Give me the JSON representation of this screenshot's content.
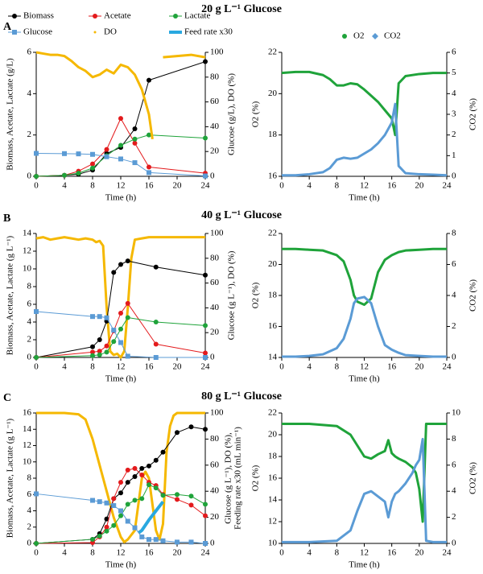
{
  "panels": [
    {
      "label": "A",
      "title": "20 g L⁻¹ Glucose"
    },
    {
      "label": "B",
      "title": "40 g L⁻¹ Glucose"
    },
    {
      "label": "C",
      "title": "80 g L⁻¹ Glucose"
    }
  ],
  "chart_data": [
    {
      "type": "line",
      "xlabel": "Time (h)",
      "ylabel": "Biomass, Acetate, Lactate (g/L)",
      "y2label": "Glucose (g/L), DO (%)",
      "xlim": [
        0,
        24
      ],
      "xticks": [
        0,
        4,
        8,
        12,
        16,
        20,
        24
      ],
      "ylim": [
        0,
        6
      ],
      "yticks": [
        0,
        2,
        4,
        6
      ],
      "y2lim": [
        0,
        100
      ],
      "y2ticks": [
        0,
        20,
        40,
        60,
        80,
        100
      ],
      "legend": [
        {
          "name": "Biomass",
          "color": "#000000",
          "marker": "circle"
        },
        {
          "name": "Acetate",
          "color": "#e31a1c",
          "marker": "circle"
        },
        {
          "name": "Lactate",
          "color": "#1fa33a",
          "marker": "circle"
        },
        {
          "name": "Glucose",
          "color": "#5b9bd5",
          "marker": "square"
        },
        {
          "name": "DO",
          "color": "#f5b800",
          "marker": "dot"
        },
        {
          "name": "Feed rate x30",
          "color": "#29a8e0",
          "marker": "bar"
        }
      ],
      "x": [
        0,
        4,
        6,
        8,
        10,
        12,
        14,
        16,
        24
      ],
      "series": [
        {
          "color": "#000000",
          "marker": "circle",
          "values": [
            0,
            0.05,
            0.1,
            0.3,
            1.1,
            1.4,
            2.3,
            4.65,
            5.55
          ]
        },
        {
          "color": "#e31a1c",
          "marker": "circle",
          "values": [
            0,
            0.05,
            0.25,
            0.6,
            1.3,
            2.8,
            1.6,
            0.45,
            0.15
          ]
        },
        {
          "color": "#1fa33a",
          "marker": "circle",
          "values": [
            0,
            0.05,
            0.15,
            0.4,
            1.0,
            1.5,
            1.8,
            2.0,
            1.85
          ]
        },
        {
          "color": "#5b9bd5",
          "marker": "square",
          "axis": "y2",
          "values": [
            18.5,
            18.3,
            18.1,
            17.7,
            15.8,
            14,
            11,
            3,
            0.3
          ]
        },
        {
          "color": "#f5b800",
          "marker": "none",
          "width": 3,
          "axis": "y2",
          "x": [
            0,
            1,
            2,
            3,
            4,
            5,
            6,
            7,
            8,
            9,
            10,
            11,
            12,
            13,
            14,
            15,
            16,
            16.5,
            17,
            18,
            20,
            22,
            24
          ],
          "values": [
            100,
            99,
            98,
            98,
            97,
            93,
            88,
            85,
            80,
            82,
            86,
            83,
            90,
            88,
            82,
            70,
            50,
            30,
            null,
            96,
            97,
            98,
            96
          ]
        }
      ]
    },
    {
      "type": "line",
      "xlabel": "Time (h)",
      "ylabel": "O2 (%)",
      "y2label": "CO2 (%)",
      "xlim": [
        0,
        24
      ],
      "xticks": [
        0,
        4,
        8,
        12,
        16,
        20,
        24
      ],
      "ylim": [
        16,
        22
      ],
      "yticks": [
        16,
        18,
        20,
        22
      ],
      "y2lim": [
        0,
        6
      ],
      "y2ticks": [
        0,
        1,
        2,
        3,
        4,
        5,
        6
      ],
      "legend": [
        {
          "name": "O2",
          "color": "#1fa33a",
          "marker": "circle"
        },
        {
          "name": "CO2",
          "color": "#5b9bd5",
          "marker": "diamond"
        }
      ],
      "x": [
        0,
        2,
        4,
        6,
        7,
        8,
        9,
        10,
        11,
        12,
        13,
        14,
        15,
        16,
        16.5,
        17,
        18,
        20,
        22,
        24
      ],
      "series": [
        {
          "color": "#1fa33a",
          "marker": "none",
          "width": 3,
          "values": [
            21,
            21.05,
            21.05,
            20.9,
            20.7,
            20.4,
            20.4,
            20.5,
            20.45,
            20.2,
            19.9,
            19.6,
            19.2,
            18.8,
            18,
            20.5,
            20.85,
            20.95,
            21,
            21
          ]
        },
        {
          "color": "#5b9bd5",
          "marker": "none",
          "width": 3,
          "axis": "y2",
          "values": [
            0.05,
            0.05,
            0.1,
            0.2,
            0.4,
            0.8,
            0.9,
            0.85,
            0.9,
            1.1,
            1.3,
            1.6,
            2.0,
            2.6,
            3.5,
            0.5,
            0.15,
            0.1,
            0.08,
            0.05
          ]
        }
      ]
    },
    {
      "type": "line",
      "xlabel": "Time (h)",
      "ylabel": "Biomass, Acetate, Lactate (g L⁻¹)",
      "y2label": "Glucose (g L⁻¹), DO (%)",
      "xlim": [
        0,
        24
      ],
      "xticks": [
        0,
        4,
        8,
        12,
        16,
        20,
        24
      ],
      "ylim": [
        0,
        14
      ],
      "yticks": [
        0,
        2,
        4,
        6,
        8,
        10,
        12,
        14
      ],
      "y2lim": [
        0,
        100
      ],
      "y2ticks": [
        0,
        20,
        40,
        60,
        80,
        100
      ],
      "x": [
        0,
        8,
        9,
        10,
        11,
        12,
        13,
        17,
        24
      ],
      "series": [
        {
          "color": "#f5b800",
          "marker": "none",
          "width": 3,
          "axis": "y2",
          "x": [
            0,
            1,
            2,
            3,
            4,
            5,
            6,
            7,
            8,
            8.5,
            9,
            9.5,
            10,
            10.5,
            11,
            11.5,
            12,
            12.5,
            13,
            13.5,
            14,
            15,
            16,
            17,
            18,
            20,
            22,
            24
          ],
          "values": [
            96,
            97,
            95,
            96,
            97,
            96,
            95,
            96,
            95,
            93,
            94,
            90,
            40,
            5,
            2,
            3,
            0,
            5,
            40,
            80,
            95,
            96,
            97,
            97,
            97,
            97,
            97,
            97
          ]
        },
        {
          "color": "#000000",
          "marker": "circle",
          "values": [
            0,
            1.2,
            2,
            4.1,
            9.6,
            10.5,
            10.9,
            10.2,
            9.3
          ]
        },
        {
          "color": "#e31a1c",
          "marker": "circle",
          "values": [
            0,
            0.6,
            0.7,
            1.3,
            3.0,
            5.0,
            6.1,
            1.5,
            0.5
          ]
        },
        {
          "color": "#1fa33a",
          "marker": "circle",
          "values": [
            0,
            0.2,
            0.3,
            0.6,
            1.8,
            3.2,
            4.5,
            4,
            3.6
          ]
        },
        {
          "color": "#5b9bd5",
          "marker": "square",
          "axis": "y2",
          "values": [
            37,
            33,
            33,
            32,
            22,
            12,
            1,
            0,
            0
          ]
        }
      ]
    },
    {
      "type": "line",
      "xlabel": "Time (h)",
      "ylabel": "O2 (%)",
      "y2label": "CO2 (%)",
      "xlim": [
        0,
        24
      ],
      "xticks": [
        0,
        4,
        8,
        12,
        16,
        20,
        24
      ],
      "ylim": [
        14,
        22
      ],
      "yticks": [
        14,
        16,
        18,
        20,
        22
      ],
      "y2lim": [
        0,
        8
      ],
      "y2ticks": [
        0,
        2,
        4,
        6,
        8
      ],
      "x": [
        0,
        2,
        4,
        6,
        8,
        9,
        10,
        10.5,
        11,
        12,
        13,
        14,
        15,
        16,
        17,
        18,
        20,
        22,
        24
      ],
      "series": [
        {
          "color": "#1fa33a",
          "marker": "none",
          "width": 3,
          "values": [
            21,
            21,
            20.95,
            20.9,
            20.6,
            20.2,
            19,
            18,
            17.6,
            17.4,
            17.8,
            19.5,
            20.3,
            20.6,
            20.8,
            20.9,
            20.95,
            21,
            21
          ]
        },
        {
          "color": "#5b9bd5",
          "marker": "none",
          "width": 3,
          "axis": "y2",
          "values": [
            0.05,
            0.05,
            0.1,
            0.2,
            0.6,
            1.2,
            2.5,
            3.5,
            3.8,
            3.9,
            3.5,
            2.0,
            0.8,
            0.5,
            0.3,
            0.15,
            0.1,
            0.05,
            0.05
          ]
        }
      ]
    },
    {
      "type": "line",
      "xlabel": "Time (h)",
      "ylabel": "Biomass, Acetate, Lactate (g L⁻¹)",
      "y2label": [
        "Glucose (g L⁻¹), DO (%),",
        "Feeding rate x30 (mL min⁻¹)"
      ],
      "xlim": [
        0,
        24
      ],
      "xticks": [
        0,
        4,
        8,
        12,
        16,
        20,
        24
      ],
      "ylim": [
        0,
        16
      ],
      "yticks": [
        0,
        2,
        4,
        6,
        8,
        10,
        12,
        14,
        16
      ],
      "y2lim": [
        0,
        100
      ],
      "y2ticks": [
        0,
        20,
        40,
        60,
        80,
        100
      ],
      "x": [
        0,
        8,
        9,
        10,
        11,
        12,
        13,
        14,
        15,
        16,
        17,
        18,
        20,
        22,
        24
      ],
      "series": [
        {
          "color": "#f5b800",
          "marker": "none",
          "width": 3,
          "axis": "y2",
          "x": [
            0,
            2,
            4,
            6,
            7,
            8,
            9,
            10,
            11,
            12,
            12.5,
            13,
            14,
            14.5,
            15,
            15.5,
            16,
            16.5,
            17,
            17.5,
            18,
            18.5,
            19,
            19.5,
            20,
            21,
            22,
            24
          ],
          "values": [
            100,
            100,
            100,
            99,
            95,
            80,
            60,
            40,
            20,
            5,
            1,
            3,
            10,
            30,
            50,
            55,
            50,
            30,
            10,
            3,
            15,
            70,
            90,
            98,
            100,
            100,
            100,
            100
          ]
        },
        {
          "color": "#29a8e0",
          "marker": "none",
          "width": 4,
          "axis": "y2",
          "x": [
            14.5,
            15,
            16,
            17,
            18
          ],
          "values": [
            8,
            10,
            18,
            25,
            32
          ]
        },
        {
          "color": "#000000",
          "marker": "circle",
          "values": [
            0,
            0.5,
            1.2,
            3,
            5.5,
            6.2,
            7.5,
            8.2,
            9.2,
            9.5,
            10.2,
            11.2,
            13.6,
            14.3,
            14
          ]
        },
        {
          "color": "#e31a1c",
          "marker": "circle",
          "values": [
            0,
            0.1,
            0.8,
            2,
            5.5,
            7.5,
            9,
            9.2,
            8.4,
            7.5,
            7.1,
            6,
            5.4,
            4.7,
            3.4
          ]
        },
        {
          "color": "#1fa33a",
          "marker": "circle",
          "values": [
            0,
            0.5,
            0.9,
            1.5,
            2.2,
            3.4,
            4.8,
            5.3,
            5.5,
            7.2,
            6.8,
            5.9,
            6,
            5.8,
            4.8
          ]
        },
        {
          "color": "#5b9bd5",
          "marker": "square",
          "axis": "y2",
          "values": [
            38,
            33,
            32,
            31,
            29,
            25,
            17,
            12,
            5,
            3,
            3,
            2,
            1,
            1,
            0
          ]
        }
      ]
    },
    {
      "type": "line",
      "xlabel": "Time (h)",
      "ylabel": "O2 (%)",
      "y2label": "CO2 (%)",
      "xlim": [
        0,
        24
      ],
      "xticks": [
        0,
        4,
        8,
        12,
        16,
        20,
        24
      ],
      "ylim": [
        10,
        22
      ],
      "yticks": [
        10,
        12,
        14,
        16,
        18,
        20,
        22
      ],
      "y2lim": [
        0,
        10
      ],
      "y2ticks": [
        0,
        2,
        4,
        6,
        8,
        10
      ],
      "x": [
        0,
        4,
        8,
        10,
        11,
        12,
        13,
        14,
        15,
        15.5,
        16,
        16.5,
        17,
        18,
        19,
        19.5,
        20,
        20.5,
        21,
        22,
        24
      ],
      "series": [
        {
          "color": "#1fa33a",
          "marker": "none",
          "width": 3,
          "values": [
            21,
            21,
            20.8,
            20,
            19,
            18,
            17.8,
            18.2,
            18.5,
            19.5,
            18.3,
            18,
            17.8,
            17.5,
            17,
            16.5,
            15,
            12,
            21,
            21,
            21
          ]
        },
        {
          "color": "#5b9bd5",
          "marker": "none",
          "width": 3,
          "axis": "y2",
          "values": [
            0.1,
            0.1,
            0.2,
            1,
            2.5,
            3.8,
            4,
            3.6,
            3.2,
            2,
            3.2,
            3.8,
            4,
            4.6,
            5.4,
            6,
            6.4,
            8,
            0.2,
            0.1,
            0.1
          ]
        }
      ]
    }
  ]
}
